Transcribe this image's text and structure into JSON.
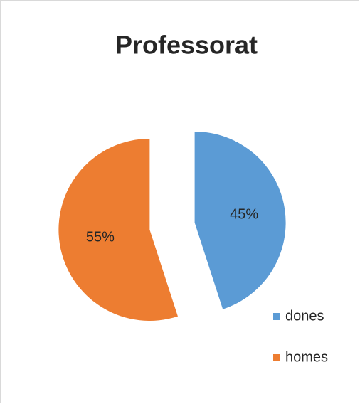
{
  "chart_data": {
    "type": "pie",
    "title": "Professorat",
    "categories": [
      "dones",
      "homes"
    ],
    "values": [
      45,
      55
    ],
    "value_labels": [
      "45%",
      "55%"
    ],
    "colors": [
      "#5b9bd5",
      "#ed7d31"
    ],
    "legend": "right"
  }
}
